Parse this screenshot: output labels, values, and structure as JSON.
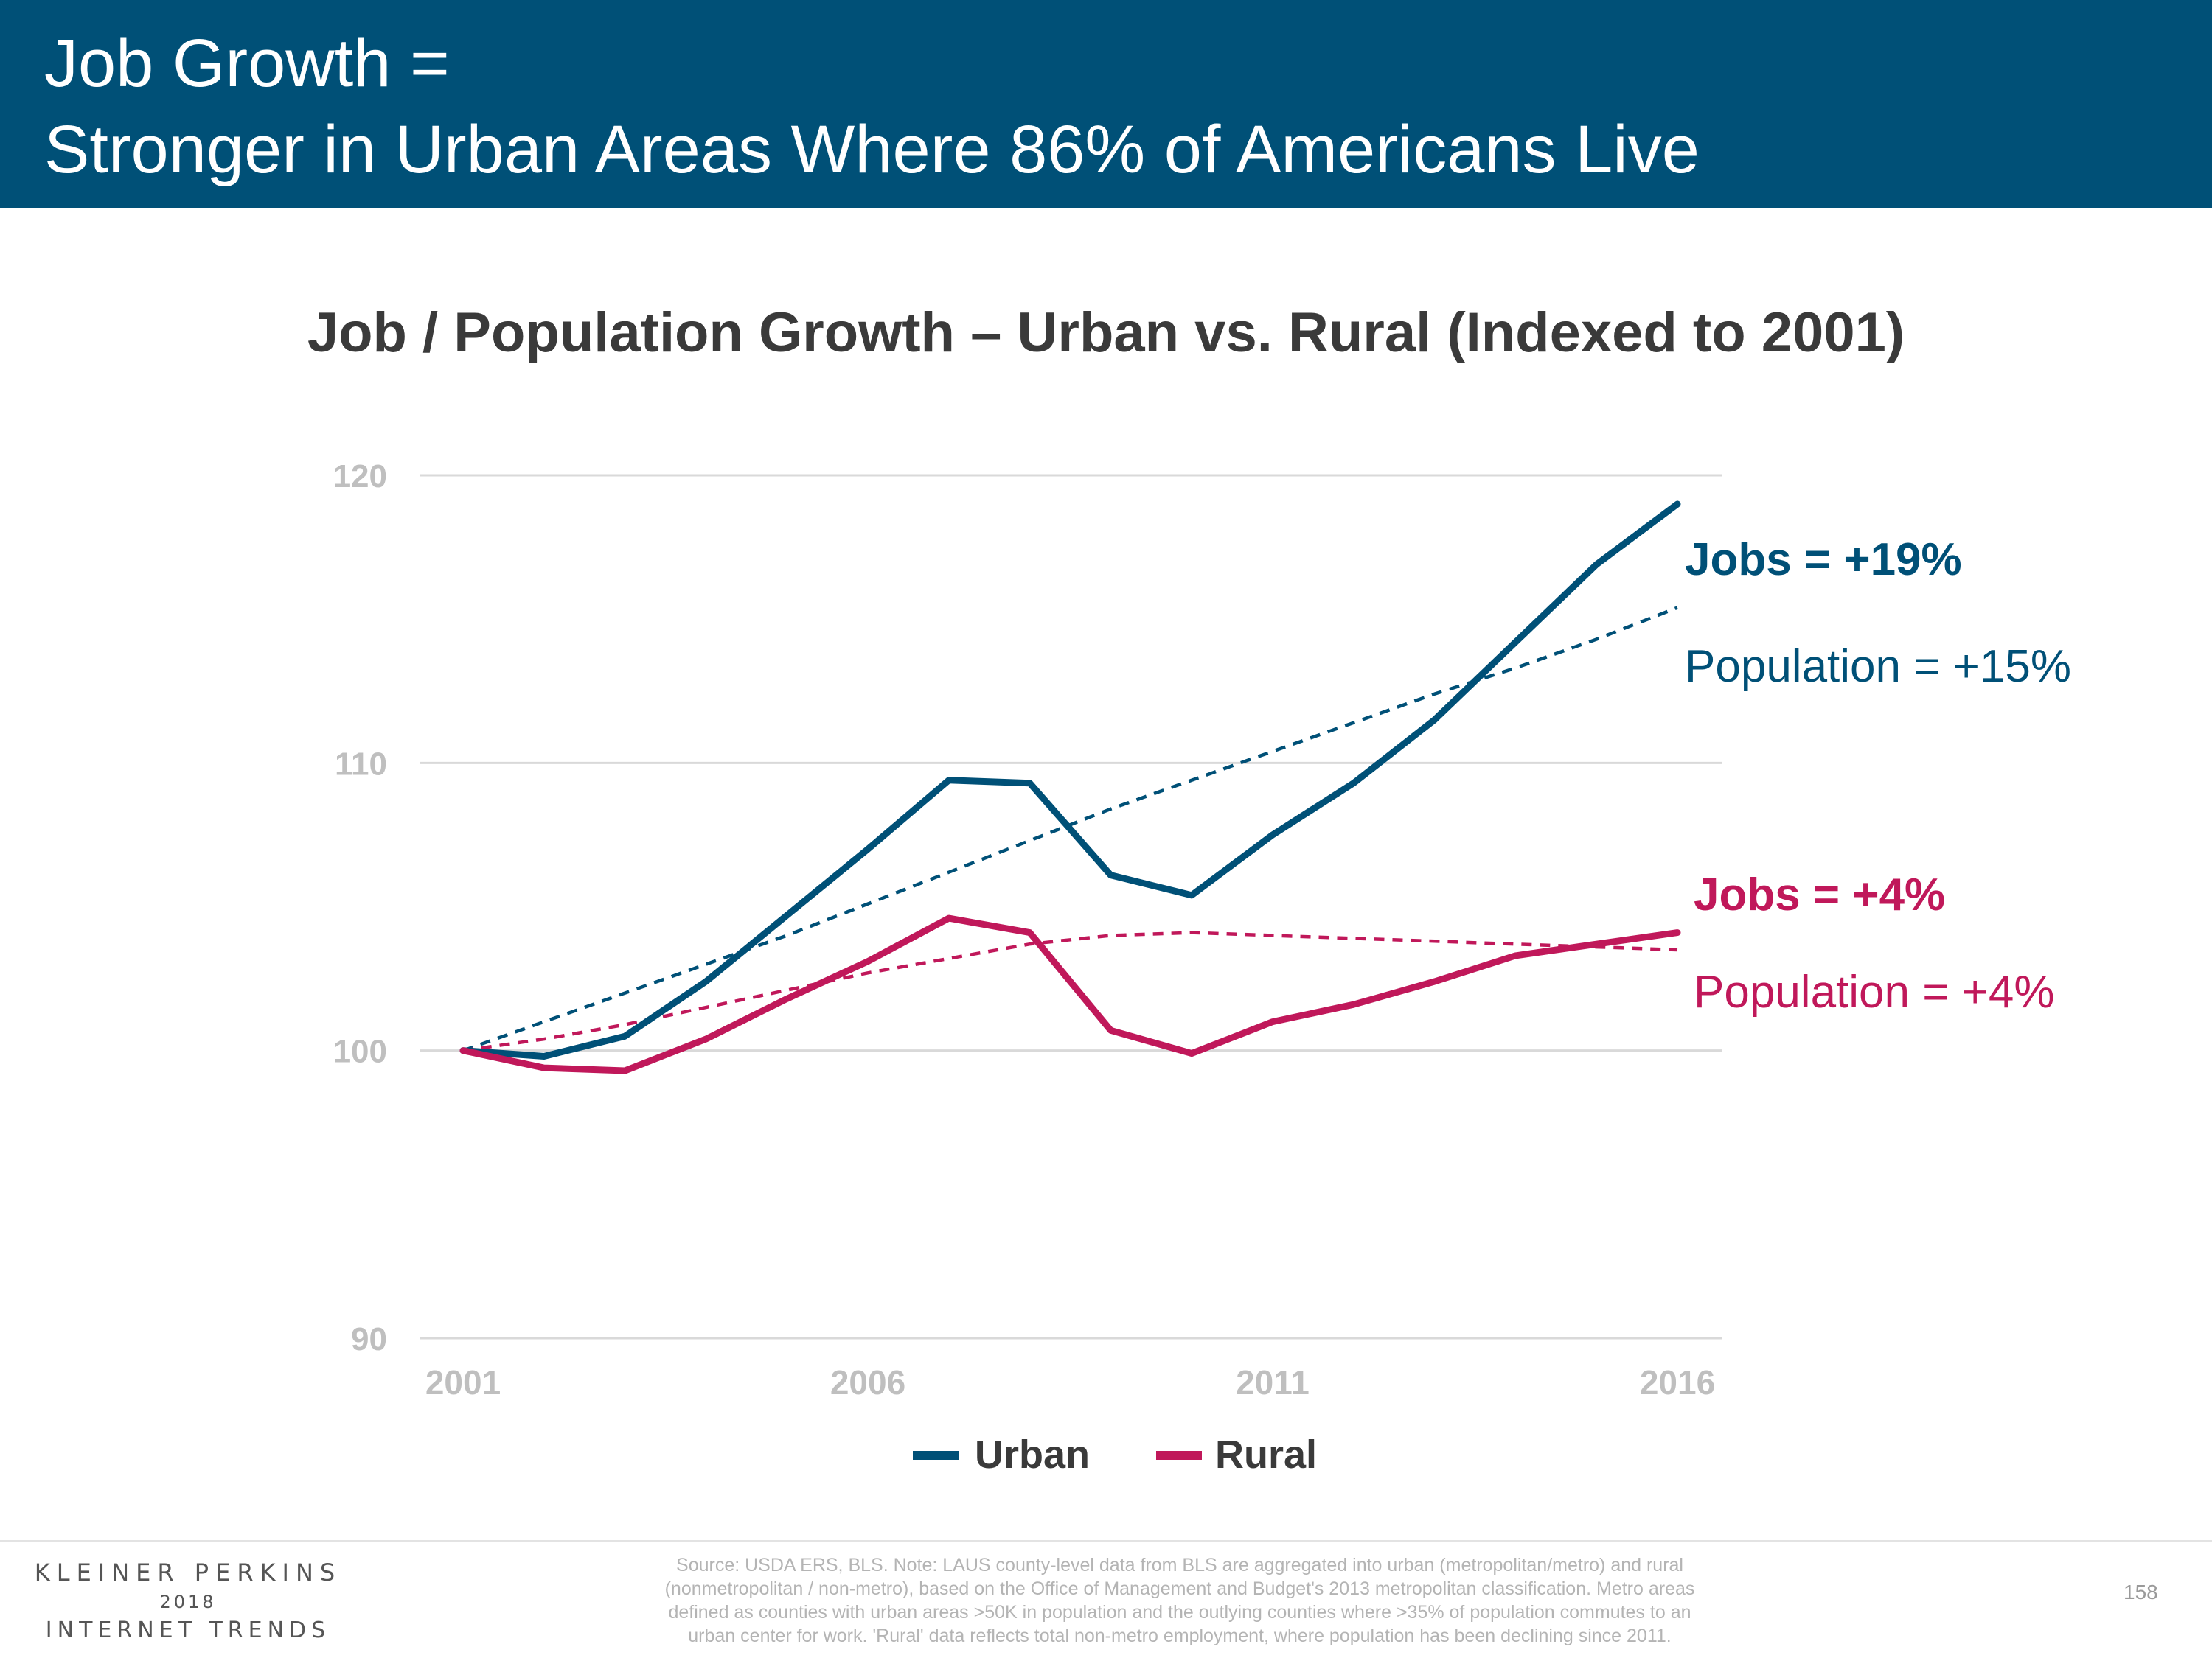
{
  "header": {
    "title_line1": "Job Growth =",
    "title_line2": "Stronger in Urban Areas Where 86% of Americans Live",
    "background_color": "#005077"
  },
  "chart_data": {
    "type": "line",
    "title": "Job / Population Growth – Urban vs. Rural (Indexed to 2001)",
    "xlabel": "",
    "ylabel": "",
    "x": [
      2001,
      2002,
      2003,
      2004,
      2005,
      2006,
      2007,
      2008,
      2009,
      2010,
      2011,
      2012,
      2013,
      2014,
      2015,
      2016
    ],
    "x_ticks": [
      "2001",
      "2006",
      "2011",
      "2016"
    ],
    "y_ticks": [
      "90",
      "100",
      "110",
      "120"
    ],
    "ylim": [
      90,
      120
    ],
    "xlim": [
      2001,
      2016
    ],
    "grid": true,
    "legend_position": "bottom",
    "legend": [
      "Urban",
      "Rural"
    ],
    "series": [
      {
        "name": "Urban",
        "color": "#005077",
        "style": "solid",
        "values": [
          100.0,
          99.8,
          100.5,
          102.4,
          104.7,
          107.0,
          109.4,
          109.3,
          106.1,
          105.4,
          107.5,
          109.3,
          111.5,
          114.2,
          116.9,
          119.0
        ]
      },
      {
        "name": "Rural",
        "color": "#c0185a",
        "style": "solid",
        "values": [
          100.0,
          99.4,
          99.3,
          100.4,
          101.8,
          103.1,
          104.6,
          104.1,
          100.7,
          99.9,
          101.0,
          101.6,
          102.4,
          103.3,
          103.7,
          104.1
        ]
      },
      {
        "color": "#005077",
        "style": "dashed",
        "values": [
          100.0,
          101.0,
          102.0,
          103.0,
          104.0,
          105.1,
          106.2,
          107.3,
          108.4,
          109.4,
          110.4,
          111.4,
          112.4,
          113.3,
          114.3,
          115.4
        ]
      },
      {
        "color": "#c0185a",
        "style": "dashed",
        "values": [
          100.0,
          100.4,
          100.9,
          101.5,
          102.1,
          102.7,
          103.2,
          103.7,
          104.0,
          104.1,
          104.0,
          103.9,
          103.8,
          103.7,
          103.6,
          103.5
        ]
      }
    ],
    "annotations": [
      {
        "text": "Jobs = +19%",
        "color": "#005077",
        "bold": true
      },
      {
        "text": "Population = +15%",
        "color": "#005077",
        "bold": false
      },
      {
        "text": "Jobs = +4%",
        "color": "#c0185a",
        "bold": true
      },
      {
        "text": "Population = +4%",
        "color": "#c0185a",
        "bold": false
      }
    ]
  },
  "footer": {
    "brand_line1": "KLEINER PERKINS",
    "brand_line2": "2018",
    "brand_line3": "INTERNET TRENDS",
    "source_lines": [
      "Source: USDA ERS, BLS.  Note: LAUS county-level data from BLS are aggregated into urban (metropolitan/metro) and rural",
      "(nonmetropolitan / non-metro), based on the Office of Management and Budget's 2013 metropolitan classification. Metro areas",
      "defined as counties with urban areas >50K in population and the outlying counties where >35% of population commutes to an",
      "urban center for work. 'Rural' data reflects total non-metro employment, where population has been declining since 2011."
    ],
    "page_number": "158"
  }
}
